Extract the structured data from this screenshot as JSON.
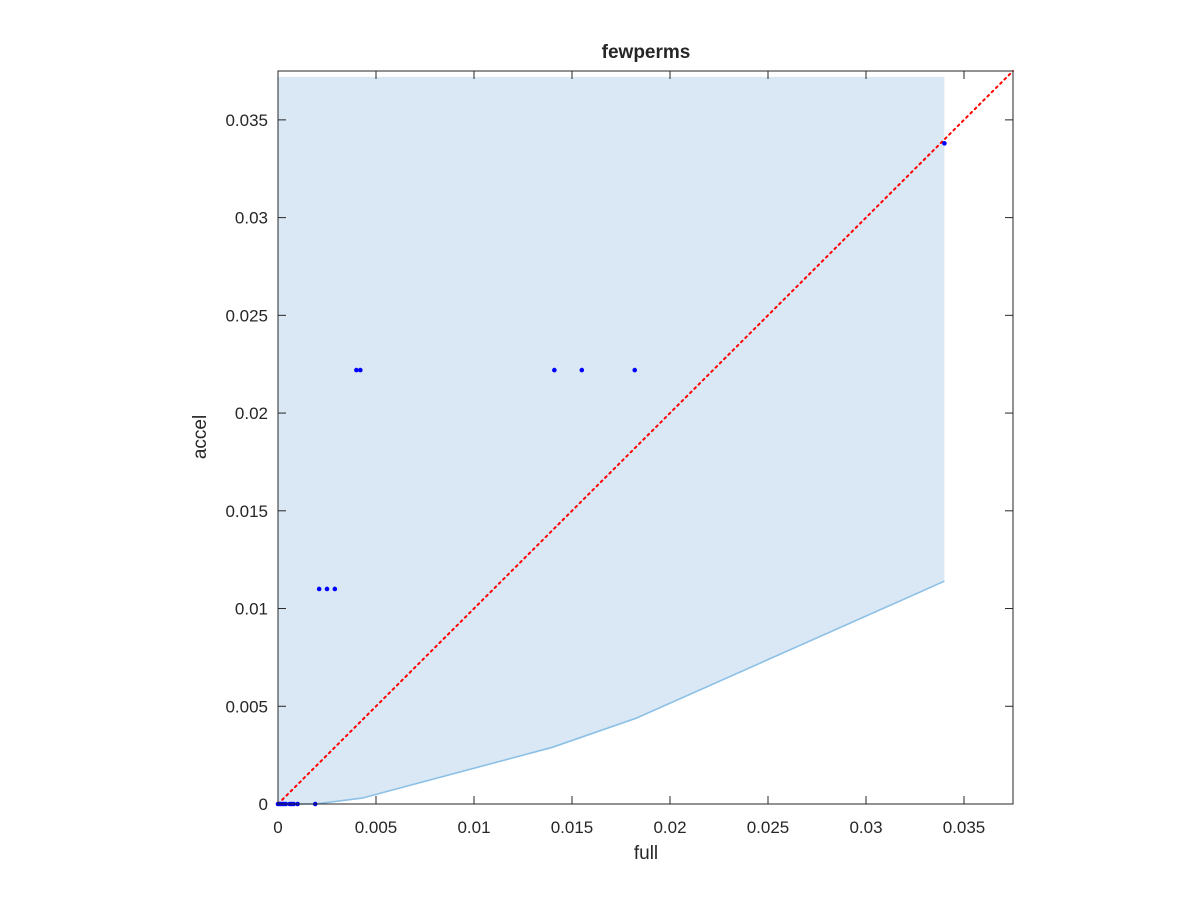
{
  "chart_data": {
    "type": "scatter",
    "title": "fewperms",
    "xlabel": "full",
    "ylabel": "accel",
    "xlim": [
      0,
      0.0375
    ],
    "ylim": [
      0,
      0.0375
    ],
    "xticks": [
      0,
      0.005,
      0.01,
      0.015,
      0.02,
      0.025,
      0.03,
      0.035
    ],
    "xtick_labels": [
      "0",
      "0.005",
      "0.01",
      "0.015",
      "0.02",
      "0.025",
      "0.03",
      "0.035"
    ],
    "yticks": [
      0,
      0.005,
      0.01,
      0.015,
      0.02,
      0.025,
      0.03,
      0.035
    ],
    "ytick_labels": [
      "0",
      "0.005",
      "0.01",
      "0.015",
      "0.02",
      "0.025",
      "0.03",
      "0.035"
    ],
    "grid": false,
    "box": true,
    "colors": {
      "points": "#0000ff",
      "reference_line": "#ff0000",
      "band_fill": "#d9e8f4",
      "band_edge": "#8cc0e6",
      "axes": "#262626"
    },
    "shaded_region": {
      "x_max": 0.034,
      "top": 0.0372,
      "lower_boundary": [
        {
          "x": 0,
          "y": 0
        },
        {
          "x": 0.0019,
          "y": 0
        },
        {
          "x": 0.0043,
          "y": 0.0003
        },
        {
          "x": 0.014,
          "y": 0.0029
        },
        {
          "x": 0.0183,
          "y": 0.0044
        },
        {
          "x": 0.034,
          "y": 0.0114
        }
      ]
    },
    "reference_line": {
      "style": "dotted",
      "from": [
        0,
        0
      ],
      "to": [
        0.0375,
        0.0375
      ]
    },
    "series": [
      {
        "points": [
          {
            "x": 0,
            "y": 0
          },
          {
            "x": 0.0001,
            "y": 0
          },
          {
            "x": 0.0002,
            "y": 0
          },
          {
            "x": 0.0003,
            "y": 0
          },
          {
            "x": 0.0004,
            "y": 0
          },
          {
            "x": 0.0006,
            "y": 0
          },
          {
            "x": 0.0007,
            "y": 0
          },
          {
            "x": 0.0008,
            "y": 0
          },
          {
            "x": 0.001,
            "y": 0
          },
          {
            "x": 0.0019,
            "y": 0
          },
          {
            "x": 0.0021,
            "y": 0.011
          },
          {
            "x": 0.0025,
            "y": 0.011
          },
          {
            "x": 0.0029,
            "y": 0.011
          },
          {
            "x": 0.004,
            "y": 0.0222
          },
          {
            "x": 0.0042,
            "y": 0.0222
          },
          {
            "x": 0.0141,
            "y": 0.0222
          },
          {
            "x": 0.0155,
            "y": 0.0222
          },
          {
            "x": 0.0182,
            "y": 0.0222
          },
          {
            "x": 0.034,
            "y": 0.0338
          }
        ]
      }
    ]
  }
}
